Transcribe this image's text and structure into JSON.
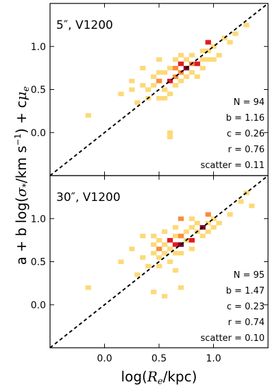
{
  "chart_data": {
    "type": "heatmap",
    "xlabel_parts": [
      "log(",
      "R",
      "e",
      "/kpc)"
    ],
    "ylabel_parts": [
      "a + b log(",
      "σ",
      "*",
      "/km s",
      "−1",
      ") + c",
      "μ",
      "e"
    ],
    "xlim": [
      -0.5,
      1.5
    ],
    "ylim": [
      -0.5,
      1.5
    ],
    "x_ticks": [
      0.0,
      0.5,
      1.0
    ],
    "x_tick_labels": [
      "0.0",
      "0.5",
      "1.0"
    ],
    "y_ticks": [
      0.0,
      0.5,
      1.0
    ],
    "y_tick_labels": [
      "0.0",
      "0.5",
      "1.0"
    ],
    "reference_line": "one-to-one (y = x), dashed black",
    "bin_size": 0.05,
    "colors": {
      "low": "#fdd978",
      "mid": "#fb8c3c",
      "high": "#e31a1c",
      "max": "#800026",
      "line": "#000000"
    },
    "panels": [
      {
        "title": "5″, V1200",
        "stats": [
          "N = 94",
          "b = 1.16",
          "c = 0.26",
          "r = 0.76",
          "scatter = 0.11"
        ],
        "cells": [
          [
            -0.15,
            0.2,
            1
          ],
          [
            0.15,
            0.45,
            1
          ],
          [
            0.25,
            0.6,
            1
          ],
          [
            0.25,
            0.5,
            1
          ],
          [
            0.3,
            0.35,
            1
          ],
          [
            0.35,
            0.75,
            1
          ],
          [
            0.35,
            0.55,
            1
          ],
          [
            0.4,
            0.5,
            1
          ],
          [
            0.4,
            0.4,
            1
          ],
          [
            0.45,
            0.65,
            1
          ],
          [
            0.45,
            0.55,
            1
          ],
          [
            0.5,
            0.85,
            1
          ],
          [
            0.5,
            0.7,
            1
          ],
          [
            0.5,
            0.6,
            2
          ],
          [
            0.5,
            0.4,
            1
          ],
          [
            0.55,
            0.7,
            1
          ],
          [
            0.55,
            0.5,
            1
          ],
          [
            0.55,
            0.4,
            1
          ],
          [
            0.6,
            0.75,
            1
          ],
          [
            0.6,
            0.6,
            3
          ],
          [
            0.6,
            0.45,
            1
          ],
          [
            0.6,
            0.0,
            1
          ],
          [
            0.6,
            -0.05,
            1
          ],
          [
            0.65,
            0.85,
            1
          ],
          [
            0.65,
            0.75,
            2
          ],
          [
            0.65,
            0.65,
            2
          ],
          [
            0.65,
            0.55,
            1
          ],
          [
            0.7,
            0.9,
            1
          ],
          [
            0.7,
            0.8,
            3
          ],
          [
            0.7,
            0.7,
            2
          ],
          [
            0.7,
            0.6,
            1
          ],
          [
            0.75,
            0.85,
            1
          ],
          [
            0.75,
            0.75,
            4
          ],
          [
            0.75,
            0.65,
            1
          ],
          [
            0.8,
            0.9,
            1
          ],
          [
            0.8,
            0.8,
            2
          ],
          [
            0.8,
            0.7,
            1
          ],
          [
            0.85,
            0.8,
            3
          ],
          [
            0.85,
            0.65,
            1
          ],
          [
            0.9,
            0.95,
            1
          ],
          [
            0.9,
            0.85,
            1
          ],
          [
            0.9,
            0.75,
            1
          ],
          [
            0.95,
            1.05,
            3
          ],
          [
            0.95,
            0.95,
            1
          ],
          [
            0.95,
            0.85,
            1
          ],
          [
            1.0,
            1.0,
            1
          ],
          [
            1.0,
            0.85,
            1
          ],
          [
            1.05,
            0.9,
            1
          ],
          [
            1.1,
            1.1,
            1
          ],
          [
            1.15,
            1.05,
            1
          ],
          [
            1.2,
            1.15,
            1
          ],
          [
            1.3,
            1.25,
            1
          ]
        ]
      },
      {
        "title": "30″, V1200",
        "stats": [
          "N = 95",
          "b = 1.47",
          "c = 0.23",
          "r = 0.74",
          "scatter = 0.10"
        ],
        "cells": [
          [
            -0.15,
            0.2,
            1
          ],
          [
            0.15,
            0.5,
            1
          ],
          [
            0.25,
            0.65,
            1
          ],
          [
            0.3,
            0.35,
            1
          ],
          [
            0.35,
            0.8,
            1
          ],
          [
            0.35,
            0.55,
            1
          ],
          [
            0.4,
            0.45,
            1
          ],
          [
            0.45,
            0.8,
            1
          ],
          [
            0.45,
            0.6,
            1
          ],
          [
            0.45,
            0.7,
            1
          ],
          [
            0.45,
            0.15,
            1
          ],
          [
            0.5,
            0.75,
            1
          ],
          [
            0.5,
            0.65,
            2
          ],
          [
            0.5,
            0.55,
            1
          ],
          [
            0.5,
            0.45,
            1
          ],
          [
            0.55,
            0.85,
            1
          ],
          [
            0.55,
            0.7,
            1
          ],
          [
            0.55,
            0.6,
            1
          ],
          [
            0.55,
            0.1,
            1
          ],
          [
            0.6,
            0.75,
            3
          ],
          [
            0.6,
            0.65,
            1
          ],
          [
            0.6,
            0.5,
            1
          ],
          [
            0.65,
            0.9,
            1
          ],
          [
            0.65,
            0.8,
            1
          ],
          [
            0.65,
            0.7,
            3
          ],
          [
            0.65,
            0.6,
            1
          ],
          [
            0.65,
            0.4,
            1
          ],
          [
            0.7,
            1.0,
            2
          ],
          [
            0.7,
            0.8,
            2
          ],
          [
            0.7,
            0.7,
            4
          ],
          [
            0.7,
            0.6,
            1
          ],
          [
            0.7,
            0.2,
            1
          ],
          [
            0.75,
            0.85,
            1
          ],
          [
            0.75,
            0.75,
            1
          ],
          [
            0.8,
            1.0,
            1
          ],
          [
            0.8,
            0.9,
            1
          ],
          [
            0.8,
            0.75,
            3
          ],
          [
            0.8,
            0.65,
            1
          ],
          [
            0.85,
            0.85,
            1
          ],
          [
            0.85,
            0.95,
            1
          ],
          [
            0.9,
            0.9,
            4
          ],
          [
            0.9,
            0.8,
            1
          ],
          [
            0.95,
            1.05,
            2
          ],
          [
            0.95,
            0.95,
            1
          ],
          [
            0.95,
            0.85,
            1
          ],
          [
            1.0,
            1.0,
            1
          ],
          [
            1.0,
            0.9,
            1
          ],
          [
            1.05,
            0.95,
            1
          ],
          [
            1.15,
            1.05,
            1
          ],
          [
            1.25,
            1.2,
            1
          ],
          [
            1.3,
            1.3,
            1
          ],
          [
            1.35,
            1.15,
            1
          ]
        ]
      }
    ]
  }
}
